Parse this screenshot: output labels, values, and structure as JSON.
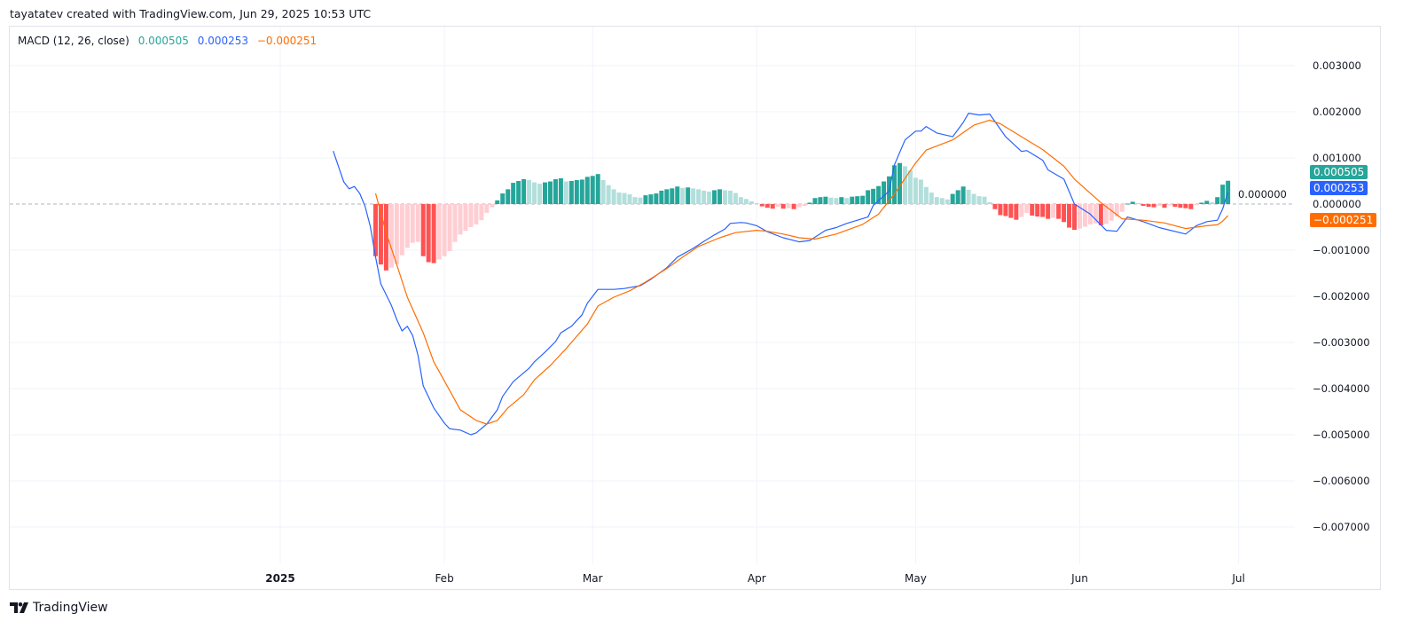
{
  "header": {
    "credit": "tayatatev created with TradingView.com, Jun 29, 2025 10:53 UTC"
  },
  "legend": {
    "indicator": "MACD (12, 26, close)",
    "histogram_value": "0.000505",
    "macd_value": "0.000253",
    "signal_value": "−0.000251"
  },
  "footer": {
    "brand": "TradingView",
    "logo_icon": "tradingview-logo-icon"
  },
  "colors": {
    "macd": "#2962ff",
    "signal": "#ff6d00",
    "hist_pos_up": "#26a69a",
    "hist_pos_down": "#b2dfdb",
    "hist_neg_down": "#ff5252",
    "hist_neg_up": "#ffcdd2",
    "grid": "#f0f3fa",
    "zero_line": "#b2b5be"
  },
  "chart_data": {
    "type": "bar+line",
    "title": "MACD (12, 26, close)",
    "ylim": [
      -0.0078,
      0.0038
    ],
    "y_ticks": [
      0.003,
      0.002,
      0.001,
      0,
      -0.001,
      -0.002,
      -0.003,
      -0.004,
      -0.005,
      -0.006,
      -0.007
    ],
    "y_tick_labels": [
      "0.003000",
      "0.002000",
      "0.001000",
      "0.000000",
      "−0.001000",
      "−0.002000",
      "−0.003000",
      "−0.004000",
      "−0.005000",
      "−0.006000",
      "−0.007000"
    ],
    "x_ticks": [
      {
        "date": "2025-01-01",
        "label": "2025"
      },
      {
        "date": "2025-02-01",
        "label": "Feb"
      },
      {
        "date": "2025-03-01",
        "label": "Mar"
      },
      {
        "date": "2025-04-01",
        "label": "Apr"
      },
      {
        "date": "2025-05-01",
        "label": "May"
      },
      {
        "date": "2025-06-01",
        "label": "Jun"
      },
      {
        "date": "2025-07-01",
        "label": "Jul"
      }
    ],
    "grid": true,
    "last_values": {
      "histogram": "0.000505",
      "macd": "0.000253",
      "signal": "−0.000251",
      "zero": "0.000000"
    },
    "histogram": {
      "start_date": "2025-01-19",
      "interval": "1D",
      "values": [
        -0.00113,
        -0.00131,
        -0.00144,
        -0.00138,
        -0.0013,
        -0.00111,
        -0.00095,
        -0.00084,
        -0.00082,
        -0.00113,
        -0.00126,
        -0.00128,
        -0.0012,
        -0.00113,
        -0.00102,
        -0.00082,
        -0.00066,
        -0.00058,
        -0.0005,
        -0.00044,
        -0.00035,
        -0.00019,
        -7e-05,
        8e-05,
        0.00023,
        0.00032,
        0.00046,
        0.0005,
        0.00054,
        0.00052,
        0.00047,
        0.00044,
        0.00047,
        0.00049,
        0.00054,
        0.00056,
        0.00049,
        0.0005,
        0.00052,
        0.00053,
        0.00059,
        0.00061,
        0.00065,
        0.00052,
        0.00041,
        0.00032,
        0.00025,
        0.00024,
        0.00021,
        0.00015,
        0.00014,
        0.00019,
        0.00021,
        0.00023,
        0.00029,
        0.00032,
        0.00034,
        0.00038,
        0.00035,
        0.00036,
        0.00034,
        0.00032,
        0.00029,
        0.00027,
        0.0003,
        0.00032,
        0.0003,
        0.00029,
        0.00024,
        0.00015,
        0.00011,
        6e-05,
        2e-05,
        -5e-05,
        -8e-05,
        -0.0001,
        -6e-05,
        -0.0001,
        -9e-05,
        -0.00011,
        -7e-05,
        -4e-05,
        3e-05,
        0.00013,
        0.00015,
        0.00016,
        0.00014,
        0.00013,
        0.00015,
        0.00013,
        0.00016,
        0.00017,
        0.00018,
        0.0003,
        0.00033,
        0.00039,
        0.00049,
        0.0006,
        0.00084,
        0.00089,
        0.00082,
        0.00073,
        0.00057,
        0.00053,
        0.00037,
        0.00025,
        0.00015,
        0.00013,
        0.0001,
        0.00022,
        0.0003,
        0.00038,
        0.00031,
        0.00022,
        0.00017,
        0.00016,
        4e-05,
        -0.00011,
        -0.00024,
        -0.00026,
        -0.0003,
        -0.00034,
        -0.00028,
        -0.00019,
        -0.00025,
        -0.00027,
        -0.00028,
        -0.00032,
        -0.0003,
        -0.00032,
        -0.00039,
        -0.00051,
        -0.00056,
        -0.00053,
        -0.00049,
        -0.00044,
        -0.00042,
        -0.00046,
        -0.00043,
        -0.00036,
        -0.00027,
        -0.00017,
        1e-05,
        5e-05,
        2e-05,
        -4e-05,
        -6e-05,
        -7e-05,
        -4e-05,
        -8e-05,
        -3e-05,
        -6e-05,
        -8e-05,
        -9e-05,
        -0.00011,
        -2e-05,
        3e-05,
        7e-05,
        4e-05,
        0.00015,
        0.00042,
        0.000505
      ]
    },
    "series": [
      {
        "name": "MACD",
        "points": [
          [
            "2025-01-11",
            0.00115
          ],
          [
            "2025-01-13",
            0.00048
          ],
          [
            "2025-01-14",
            0.00033
          ],
          [
            "2025-01-15",
            0.00038
          ],
          [
            "2025-01-16",
            0.00023
          ],
          [
            "2025-01-17",
            -4e-05
          ],
          [
            "2025-01-18",
            -0.00048
          ],
          [
            "2025-01-19",
            -0.00115
          ],
          [
            "2025-01-20",
            -0.00173
          ],
          [
            "2025-01-22",
            -0.0022
          ],
          [
            "2025-01-23",
            -0.0025
          ],
          [
            "2025-01-24",
            -0.00275
          ],
          [
            "2025-01-25",
            -0.00265
          ],
          [
            "2025-01-26",
            -0.00285
          ],
          [
            "2025-01-27",
            -0.00327
          ],
          [
            "2025-01-28",
            -0.00394
          ],
          [
            "2025-01-30",
            -0.00442
          ],
          [
            "2025-02-01",
            -0.00475
          ],
          [
            "2025-02-02",
            -0.00487
          ],
          [
            "2025-02-04",
            -0.0049
          ],
          [
            "2025-02-06",
            -0.005
          ],
          [
            "2025-02-07",
            -0.00496
          ],
          [
            "2025-02-09",
            -0.00477
          ],
          [
            "2025-02-11",
            -0.00446
          ],
          [
            "2025-02-12",
            -0.00417
          ],
          [
            "2025-02-14",
            -0.00385
          ],
          [
            "2025-02-17",
            -0.00356
          ],
          [
            "2025-02-18",
            -0.00342
          ],
          [
            "2025-02-20",
            -0.00321
          ],
          [
            "2025-02-22",
            -0.00298
          ],
          [
            "2025-02-23",
            -0.00279
          ],
          [
            "2025-02-25",
            -0.00265
          ],
          [
            "2025-02-27",
            -0.0024
          ],
          [
            "2025-02-28",
            -0.00215
          ],
          [
            "2025-03-02",
            -0.00185
          ],
          [
            "2025-03-05",
            -0.00185
          ],
          [
            "2025-03-07",
            -0.00183
          ],
          [
            "2025-03-10",
            -0.00177
          ],
          [
            "2025-03-12",
            -0.00163
          ],
          [
            "2025-03-15",
            -0.00138
          ],
          [
            "2025-03-17",
            -0.00115
          ],
          [
            "2025-03-20",
            -0.00096
          ],
          [
            "2025-03-22",
            -0.00081
          ],
          [
            "2025-03-24",
            -0.00067
          ],
          [
            "2025-03-26",
            -0.00054
          ],
          [
            "2025-03-27",
            -0.00042
          ],
          [
            "2025-03-29",
            -0.0004
          ],
          [
            "2025-03-30",
            -0.00041
          ],
          [
            "2025-04-01",
            -0.00047
          ],
          [
            "2025-04-03",
            -0.0006
          ],
          [
            "2025-04-06",
            -0.00073
          ],
          [
            "2025-04-09",
            -0.00082
          ],
          [
            "2025-04-11",
            -0.00079
          ],
          [
            "2025-04-14",
            -0.00057
          ],
          [
            "2025-04-16",
            -0.00051
          ],
          [
            "2025-04-18",
            -0.00042
          ],
          [
            "2025-04-22",
            -0.00028
          ],
          [
            "2025-04-23",
            -3e-05
          ],
          [
            "2025-04-26",
            0.00028
          ],
          [
            "2025-04-27",
            0.00085
          ],
          [
            "2025-04-29",
            0.00139
          ],
          [
            "2025-05-01",
            0.00158
          ],
          [
            "2025-05-02",
            0.00158
          ],
          [
            "2025-05-03",
            0.00168
          ],
          [
            "2025-05-05",
            0.00154
          ],
          [
            "2025-05-08",
            0.00146
          ],
          [
            "2025-05-10",
            0.00177
          ],
          [
            "2025-05-11",
            0.00197
          ],
          [
            "2025-05-13",
            0.00193
          ],
          [
            "2025-05-15",
            0.00195
          ],
          [
            "2025-05-18",
            0.00146
          ],
          [
            "2025-05-21",
            0.00114
          ],
          [
            "2025-05-22",
            0.00116
          ],
          [
            "2025-05-25",
            0.00095
          ],
          [
            "2025-05-26",
            0.00074
          ],
          [
            "2025-05-29",
            0.00054
          ],
          [
            "2025-05-31",
            0
          ],
          [
            "2025-06-03",
            -0.00022
          ],
          [
            "2025-06-06",
            -0.00057
          ],
          [
            "2025-06-08",
            -0.00059
          ],
          [
            "2025-06-10",
            -0.00028
          ],
          [
            "2025-06-13",
            -0.00038
          ],
          [
            "2025-06-16",
            -0.00051
          ],
          [
            "2025-06-21",
            -0.00065
          ],
          [
            "2025-06-23",
            -0.00047
          ],
          [
            "2025-06-25",
            -0.00038
          ],
          [
            "2025-06-27",
            -0.00035
          ],
          [
            "2025-06-28",
            -0.0001
          ],
          [
            "2025-06-29",
            0.000253
          ]
        ]
      },
      {
        "name": "Signal",
        "points": [
          [
            "2025-01-19",
            0.00023
          ],
          [
            "2025-01-21",
            -0.00062
          ],
          [
            "2025-01-23",
            -0.00131
          ],
          [
            "2025-01-25",
            -0.00202
          ],
          [
            "2025-01-28",
            -0.00279
          ],
          [
            "2025-01-30",
            -0.00342
          ],
          [
            "2025-02-02",
            -0.00404
          ],
          [
            "2025-02-04",
            -0.00446
          ],
          [
            "2025-02-07",
            -0.00469
          ],
          [
            "2025-02-09",
            -0.00477
          ],
          [
            "2025-02-11",
            -0.00469
          ],
          [
            "2025-02-13",
            -0.00442
          ],
          [
            "2025-02-16",
            -0.00413
          ],
          [
            "2025-02-18",
            -0.00381
          ],
          [
            "2025-02-21",
            -0.0035
          ],
          [
            "2025-02-24",
            -0.00313
          ],
          [
            "2025-02-28",
            -0.0026
          ],
          [
            "2025-03-02",
            -0.00221
          ],
          [
            "2025-03-05",
            -0.00202
          ],
          [
            "2025-03-08",
            -0.00188
          ],
          [
            "2025-03-11",
            -0.00169
          ],
          [
            "2025-03-15",
            -0.0014
          ],
          [
            "2025-03-18",
            -0.00115
          ],
          [
            "2025-03-21",
            -0.00092
          ],
          [
            "2025-03-25",
            -0.00073
          ],
          [
            "2025-03-28",
            -0.00062
          ],
          [
            "2025-04-01",
            -0.00057
          ],
          [
            "2025-04-03",
            -0.00059
          ],
          [
            "2025-04-06",
            -0.00065
          ],
          [
            "2025-04-09",
            -0.00073
          ],
          [
            "2025-04-12",
            -0.00076
          ],
          [
            "2025-04-16",
            -0.00065
          ],
          [
            "2025-04-21",
            -0.00044
          ],
          [
            "2025-04-24",
            -0.00022
          ],
          [
            "2025-04-27",
            0.00022
          ],
          [
            "2025-05-01",
            0.00089
          ],
          [
            "2025-05-03",
            0.00117
          ],
          [
            "2025-05-08",
            0.00139
          ],
          [
            "2025-05-12",
            0.00171
          ],
          [
            "2025-05-15",
            0.00182
          ],
          [
            "2025-05-17",
            0.00174
          ],
          [
            "2025-05-21",
            0.00146
          ],
          [
            "2025-05-25",
            0.00118
          ],
          [
            "2025-05-29",
            0.00082
          ],
          [
            "2025-05-31",
            0.00054
          ],
          [
            "2025-06-05",
            3e-05
          ],
          [
            "2025-06-09",
            -0.00032
          ],
          [
            "2025-06-13",
            -0.00035
          ],
          [
            "2025-06-17",
            -0.00041
          ],
          [
            "2025-06-21",
            -0.00053
          ],
          [
            "2025-06-25",
            -0.00047
          ],
          [
            "2025-06-27",
            -0.00045
          ],
          [
            "2025-06-28",
            -0.00037
          ],
          [
            "2025-06-29",
            -0.000251
          ]
        ]
      }
    ]
  }
}
